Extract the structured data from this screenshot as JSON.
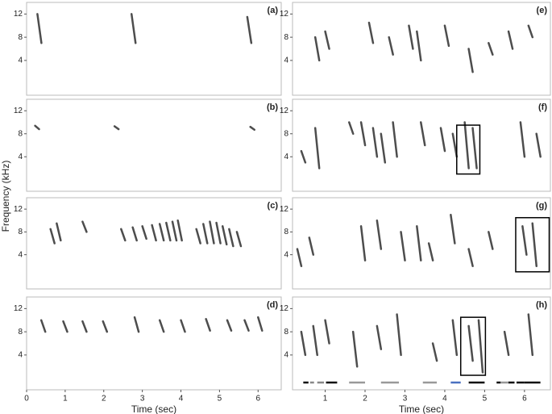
{
  "chart_data": [
    {
      "type": "spectrogram",
      "label": "(a)",
      "xlim": [
        0,
        6.6
      ],
      "ylim": [
        -2,
        14
      ],
      "yticks": [
        4,
        8,
        12
      ],
      "calls": [
        [
          0.28,
          7,
          12
        ],
        [
          2.72,
          7,
          12
        ],
        [
          5.72,
          7,
          11.5
        ]
      ]
    },
    {
      "type": "spectrogram",
      "label": "(b)",
      "xlim": [
        0,
        6.6
      ],
      "ylim": [
        -2,
        14
      ],
      "yticks": [
        4,
        8,
        12
      ],
      "calls": [
        [
          0.22,
          8.8,
          9.4
        ],
        [
          2.28,
          8.8,
          9.3
        ],
        [
          5.8,
          8.7,
          9.2
        ]
      ]
    },
    {
      "type": "spectrogram",
      "label": "(c)",
      "xlim": [
        0,
        6.6
      ],
      "ylim": [
        -2,
        14
      ],
      "yticks": [
        4,
        8,
        12
      ],
      "calls": [
        [
          0.62,
          6,
          8.5
        ],
        [
          0.78,
          6.5,
          9.5
        ],
        [
          1.45,
          8,
          9.8
        ],
        [
          2.45,
          6.5,
          8.5
        ],
        [
          2.75,
          6.5,
          8.8
        ],
        [
          3.0,
          6.8,
          9
        ],
        [
          3.25,
          6.5,
          9.2
        ],
        [
          3.45,
          6.5,
          9.4
        ],
        [
          3.62,
          6.5,
          9.6
        ],
        [
          3.78,
          6.5,
          9.8
        ],
        [
          3.92,
          6.5,
          10
        ],
        [
          4.4,
          6,
          8.5
        ],
        [
          4.58,
          6,
          9.4
        ],
        [
          4.75,
          6,
          9.8
        ],
        [
          4.92,
          6,
          9.6
        ],
        [
          5.08,
          5.8,
          9
        ],
        [
          5.25,
          5.5,
          8.5
        ],
        [
          5.45,
          5.5,
          8
        ]
      ]
    },
    {
      "type": "spectrogram",
      "label": "(d)",
      "x_label": "Time (sec)",
      "y_label": "Frequency (kHz)",
      "xlim": [
        0,
        6.6
      ],
      "ylim": [
        -2,
        14
      ],
      "yticks": [
        4,
        8,
        12
      ],
      "xticks": [
        0,
        1,
        2,
        3,
        4,
        5,
        6
      ],
      "calls": [
        [
          0.38,
          8,
          10
        ],
        [
          0.95,
          8,
          9.8
        ],
        [
          1.45,
          8,
          9.8
        ],
        [
          1.98,
          8,
          9.8
        ],
        [
          2.8,
          8,
          10.5
        ],
        [
          3.45,
          8,
          10
        ],
        [
          4.0,
          8,
          10
        ],
        [
          4.65,
          8.2,
          10.2
        ],
        [
          5.2,
          8.2,
          10
        ],
        [
          5.65,
          8.2,
          10
        ],
        [
          6.0,
          8.2,
          10.5
        ]
      ]
    },
    {
      "type": "spectrogram",
      "label": "(e)",
      "xlim": [
        0.18,
        6.65
      ],
      "ylim": [
        -2,
        14
      ],
      "yticks": [
        4,
        8,
        12
      ],
      "calls": [
        [
          0.75,
          4,
          8
        ],
        [
          1.0,
          6,
          9
        ],
        [
          2.1,
          7,
          10.5
        ],
        [
          2.6,
          5,
          8
        ],
        [
          3.1,
          6,
          10
        ],
        [
          3.3,
          4,
          9
        ],
        [
          4.0,
          6.5,
          10
        ],
        [
          4.6,
          2,
          6
        ],
        [
          5.1,
          5,
          7
        ],
        [
          5.6,
          6,
          9
        ],
        [
          6.1,
          8,
          10
        ]
      ]
    },
    {
      "type": "spectrogram",
      "label": "(f)",
      "xlim": [
        0.18,
        6.65
      ],
      "ylim": [
        -2,
        14
      ],
      "yticks": [
        4,
        8,
        12
      ],
      "calls": [
        [
          0.4,
          3,
          5
        ],
        [
          0.75,
          2,
          9
        ],
        [
          1.6,
          8,
          10
        ],
        [
          1.9,
          6,
          10
        ],
        [
          2.2,
          4,
          9
        ],
        [
          2.4,
          3,
          8
        ],
        [
          2.7,
          4,
          10
        ],
        [
          3.4,
          6,
          10
        ],
        [
          3.9,
          5,
          9
        ],
        [
          4.2,
          4,
          8
        ],
        [
          4.5,
          2,
          10
        ],
        [
          4.7,
          2,
          9
        ],
        [
          5.9,
          4,
          10
        ],
        [
          6.3,
          4,
          8
        ]
      ],
      "boxes": [
        [
          4.3,
          4.88,
          1,
          9.5
        ]
      ]
    },
    {
      "type": "spectrogram",
      "label": "(g)",
      "xlim": [
        0.18,
        6.65
      ],
      "ylim": [
        -2,
        14
      ],
      "yticks": [
        4,
        8,
        12
      ],
      "calls": [
        [
          0.3,
          2,
          5
        ],
        [
          0.6,
          4,
          7
        ],
        [
          1.9,
          3,
          9
        ],
        [
          2.3,
          5,
          10
        ],
        [
          2.9,
          3,
          8
        ],
        [
          3.3,
          3,
          9
        ],
        [
          3.6,
          3,
          6
        ],
        [
          4.15,
          6,
          11
        ],
        [
          4.6,
          2,
          5
        ],
        [
          5.1,
          5,
          8
        ],
        [
          5.95,
          4,
          9
        ],
        [
          6.2,
          2,
          9.5
        ]
      ],
      "boxes": [
        [
          5.78,
          6.62,
          1,
          10.5
        ]
      ]
    },
    {
      "type": "spectrogram",
      "label": "(h)",
      "x_label": "Time (sec)",
      "xlim": [
        0.18,
        6.65
      ],
      "ylim": [
        -2,
        14
      ],
      "yticks": [
        4,
        8,
        12
      ],
      "xticks": [
        1,
        2,
        3,
        4,
        5,
        6
      ],
      "calls": [
        [
          0.4,
          4,
          8
        ],
        [
          0.7,
          4,
          9
        ],
        [
          1.0,
          6,
          10
        ],
        [
          1.7,
          2,
          8
        ],
        [
          2.3,
          5,
          9
        ],
        [
          2.8,
          4,
          11
        ],
        [
          3.7,
          3,
          6
        ],
        [
          4.2,
          4,
          10
        ],
        [
          4.6,
          3,
          9
        ],
        [
          4.85,
          1,
          10
        ],
        [
          5.5,
          4,
          8
        ],
        [
          6.1,
          4,
          11
        ]
      ],
      "boxes": [
        [
          4.4,
          5.02,
          0.5,
          10.5
        ]
      ],
      "segments": [
        [
          0.45,
          0.58,
          "#111"
        ],
        [
          0.62,
          0.72,
          "#888"
        ],
        [
          0.8,
          0.97,
          "#888"
        ],
        [
          1.02,
          1.3,
          "#111"
        ],
        [
          1.6,
          2.0,
          "#999"
        ],
        [
          2.4,
          2.85,
          "#999"
        ],
        [
          3.45,
          3.8,
          "#999"
        ],
        [
          4.15,
          4.4,
          "#4a70c0"
        ],
        [
          4.6,
          5.0,
          "#111"
        ],
        [
          5.4,
          5.62,
          "#999"
        ],
        [
          5.3,
          5.4,
          "#111"
        ],
        [
          5.6,
          5.75,
          "#111"
        ],
        [
          5.8,
          6.0,
          "#111"
        ],
        [
          6.0,
          6.4,
          "#111"
        ]
      ]
    }
  ]
}
